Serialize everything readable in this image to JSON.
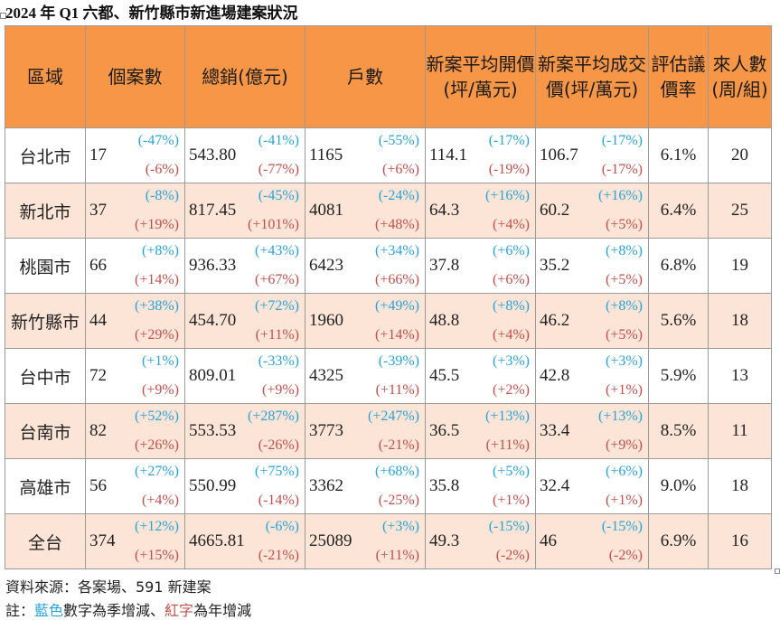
{
  "title": "2024 年 Q1 六都、新竹縣市新進場建案狀況",
  "headers": [
    "區域",
    "個案數",
    "總銷(億元)",
    "戶數",
    "新案平均開價(坪/萬元)",
    "新案平均成交價(坪/萬元)",
    "評估議價率",
    "來人數(周/組)"
  ],
  "rows": [
    {
      "region": "台北市",
      "cases": "17",
      "cases_q": "(-47%)",
      "cases_y": "(-6%)",
      "sales": "543.80",
      "sales_q": "(-41%)",
      "sales_y": "(-77%)",
      "units": "1165",
      "units_q": "(-55%)",
      "units_y": "(+6%)",
      "ask": "114.1",
      "ask_q": "(-17%)",
      "ask_y": "(-19%)",
      "deal": "106.7",
      "deal_q": "(-17%)",
      "deal_y": "(-17%)",
      "bargain": "6.1%",
      "visitors": "20"
    },
    {
      "region": "新北市",
      "cases": "37",
      "cases_q": "(-8%)",
      "cases_y": "(+19%)",
      "sales": "817.45",
      "sales_q": "(-45%)",
      "sales_y": "(+101%)",
      "units": "4081",
      "units_q": "(-24%)",
      "units_y": "(+48%)",
      "ask": "64.3",
      "ask_q": "(+16%)",
      "ask_y": "(+4%)",
      "deal": "60.2",
      "deal_q": "(+16%)",
      "deal_y": "(+5%)",
      "bargain": "6.4%",
      "visitors": "25"
    },
    {
      "region": "桃園市",
      "cases": "66",
      "cases_q": "(+8%)",
      "cases_y": "(+14%)",
      "sales": "936.33",
      "sales_q": "(+43%)",
      "sales_y": "(+67%)",
      "units": "6423",
      "units_q": "(+34%)",
      "units_y": "(+66%)",
      "ask": "37.8",
      "ask_q": "(+6%)",
      "ask_y": "(+6%)",
      "deal": "35.2",
      "deal_q": "(+8%)",
      "deal_y": "(+5%)",
      "bargain": "6.8%",
      "visitors": "19"
    },
    {
      "region": "新竹縣市",
      "cases": "44",
      "cases_q": "(+38%)",
      "cases_y": "(+29%)",
      "sales": "454.70",
      "sales_q": "(+72%)",
      "sales_y": "(+11%)",
      "units": "1960",
      "units_q": "(+49%)",
      "units_y": "(+14%)",
      "ask": "48.8",
      "ask_q": "(+8%)",
      "ask_y": "(+4%)",
      "deal": "46.2",
      "deal_q": "(+8%)",
      "deal_y": "(+5%)",
      "bargain": "5.6%",
      "visitors": "18"
    },
    {
      "region": "台中市",
      "cases": "72",
      "cases_q": "(+1%)",
      "cases_y": "(+9%)",
      "sales": "809.01",
      "sales_q": "(-33%)",
      "sales_y": "(+9%)",
      "units": "4325",
      "units_q": "(-39%)",
      "units_y": "(+11%)",
      "ask": "45.5",
      "ask_q": "(+3%)",
      "ask_y": "(+2%)",
      "deal": "42.8",
      "deal_q": "(+3%)",
      "deal_y": "(+1%)",
      "bargain": "5.9%",
      "visitors": "13"
    },
    {
      "region": "台南市",
      "cases": "82",
      "cases_q": "(+52%)",
      "cases_y": "(+26%)",
      "sales": "553.53",
      "sales_q": "(+287%)",
      "sales_y": "(-26%)",
      "units": "3773",
      "units_q": "(+247%)",
      "units_y": "(-21%)",
      "ask": "36.5",
      "ask_q": "(+13%)",
      "ask_y": "(+11%)",
      "deal": "33.4",
      "deal_q": "(+13%)",
      "deal_y": "(+9%)",
      "bargain": "8.5%",
      "visitors": "11"
    },
    {
      "region": "高雄市",
      "cases": "56",
      "cases_q": "(+27%)",
      "cases_y": "(+4%)",
      "sales": "550.99",
      "sales_q": "(+75%)",
      "sales_y": "(-14%)",
      "units": "3362",
      "units_q": "(+68%)",
      "units_y": "(-25%)",
      "ask": "35.8",
      "ask_q": "(+5%)",
      "ask_y": "(+1%)",
      "deal": "32.4",
      "deal_q": "(+6%)",
      "deal_y": "(+1%)",
      "bargain": "9.0%",
      "visitors": "18"
    },
    {
      "region": "全台",
      "cases": "374",
      "cases_q": "(+12%)",
      "cases_y": "(+15%)",
      "sales": "4665.81",
      "sales_q": "(-6%)",
      "sales_y": "(-21%)",
      "units": "25089",
      "units_q": "(+3%)",
      "units_y": "(+11%)",
      "ask": "49.3",
      "ask_q": "(-15%)",
      "ask_y": "(-2%)",
      "deal": "46",
      "deal_q": "(-15%)",
      "deal_y": "(-2%)",
      "bargain": "6.9%",
      "visitors": "16"
    }
  ],
  "footer": {
    "source": "資料來源：各案場、591 新建案",
    "note_prefix": "註：",
    "note_blue": "藍色",
    "note_mid": "數字為季增減、",
    "note_red": "紅字",
    "note_suffix": "為年增減"
  },
  "colors": {
    "header_bg": "#f79646",
    "alt_row_bg": "#fce4d6",
    "quarter_change": "#2aa3d8",
    "year_change": "#c0504d"
  }
}
